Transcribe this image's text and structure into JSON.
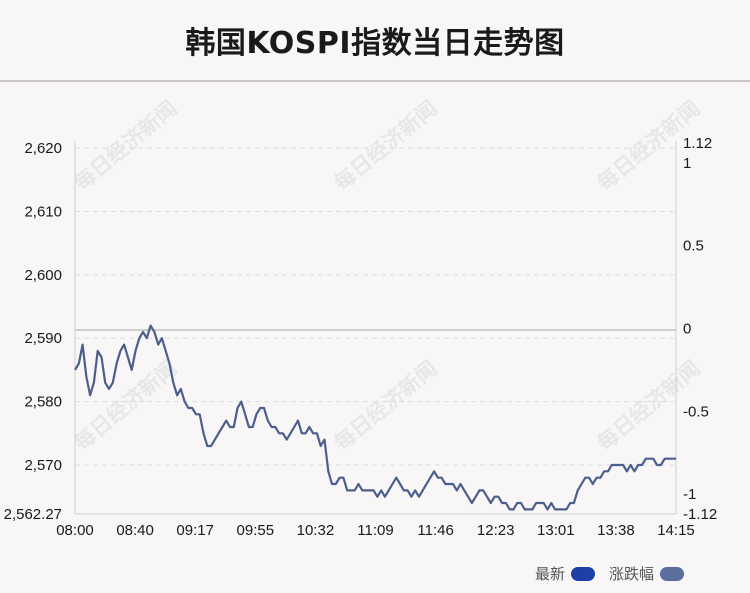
{
  "title": "韩国KOSPI指数当日走势图",
  "watermark": "每日经济新闻",
  "legend": [
    {
      "label": "最新",
      "color": "#1f3fa8"
    },
    {
      "label": "涨跌幅",
      "color": "#5a6f9e"
    }
  ],
  "colors": {
    "line": "#4c5f8c",
    "baseline": "#cfcfcf",
    "grid": "#dddddd"
  },
  "chart_data": {
    "type": "line",
    "x_tick_labels": [
      "08:00",
      "08:40",
      "09:17",
      "09:55",
      "10:32",
      "11:09",
      "11:46",
      "12:23",
      "13:01",
      "13:38",
      "14:15"
    ],
    "y_left_ticks": [
      "2,620",
      "2,610",
      "2,600",
      "2,590",
      "2,580",
      "2,570",
      "2,562.27"
    ],
    "y_left_tick_values": [
      2620,
      2610,
      2600,
      2590,
      2580,
      2570,
      2562.27
    ],
    "y_right_ticks": [
      "1.12",
      "1",
      "0.5",
      "0",
      "-0.5",
      "-1",
      "-1.12"
    ],
    "y_right_tick_values": [
      1.12,
      1,
      0.5,
      0,
      -0.5,
      -1,
      -1.12
    ],
    "ylim": [
      2562.27,
      2620.8
    ],
    "ylim_right": [
      -1.12,
      1.12
    ],
    "baseline": 2591.3,
    "grid": "horizontal-dashed",
    "series": [
      {
        "values": [
          2585,
          2586,
          2589,
          2584,
          2581,
          2583,
          2588,
          2587,
          2583,
          2582,
          2583,
          2586,
          2588,
          2589,
          2587,
          2585,
          2588,
          2590,
          2591,
          2590,
          2592,
          2591,
          2589,
          2590,
          2588,
          2586,
          2583,
          2581,
          2582,
          2580,
          2579,
          2579,
          2578,
          2578,
          2575,
          2573,
          2573,
          2574,
          2575,
          2576,
          2577,
          2576,
          2576,
          2579,
          2580,
          2578,
          2576,
          2576,
          2578,
          2579,
          2579,
          2577,
          2576,
          2576,
          2575,
          2575,
          2574,
          2575,
          2576,
          2577,
          2575,
          2575,
          2576,
          2575,
          2575,
          2573,
          2574,
          2569,
          2567,
          2567,
          2568,
          2568,
          2566,
          2566,
          2566,
          2567,
          2566,
          2566,
          2566,
          2566,
          2565,
          2566,
          2565,
          2566,
          2567,
          2568,
          2567,
          2566,
          2566,
          2565,
          2566,
          2565,
          2566,
          2567,
          2568,
          2569,
          2568,
          2568,
          2567,
          2567,
          2567,
          2566,
          2567,
          2566,
          2565,
          2564,
          2565,
          2566,
          2566,
          2565,
          2564,
          2565,
          2565,
          2564,
          2564,
          2563,
          2563,
          2564,
          2564,
          2563,
          2563,
          2563,
          2564,
          2564,
          2564,
          2563,
          2564,
          2563,
          2563,
          2563,
          2563,
          2564,
          2564,
          2566,
          2567,
          2568,
          2568,
          2567,
          2568,
          2568,
          2569,
          2569,
          2570,
          2570,
          2570,
          2570,
          2569,
          2570,
          2569,
          2570,
          2570,
          2571,
          2571,
          2571,
          2570,
          2570,
          2571,
          2571,
          2571,
          2571
        ]
      }
    ]
  }
}
